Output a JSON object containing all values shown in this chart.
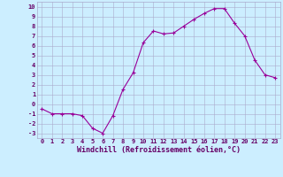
{
  "x": [
    0,
    1,
    2,
    3,
    4,
    5,
    6,
    7,
    8,
    9,
    10,
    11,
    12,
    13,
    14,
    15,
    16,
    17,
    18,
    19,
    20,
    21,
    22,
    23
  ],
  "y": [
    -0.5,
    -1.0,
    -1.0,
    -1.0,
    -1.2,
    -2.5,
    -3.0,
    -1.2,
    1.5,
    3.2,
    6.3,
    7.5,
    7.2,
    7.3,
    8.0,
    8.7,
    9.3,
    9.8,
    9.8,
    8.3,
    7.0,
    4.5,
    3.0,
    2.7
  ],
  "line_color": "#990099",
  "marker": "+",
  "marker_size": 3,
  "marker_lw": 0.8,
  "line_width": 0.8,
  "background_color": "#cceeff",
  "grid_color": "#aaaacc",
  "xlabel": "Windchill (Refroidissement éolien,°C)",
  "xlim": [
    -0.5,
    23.5
  ],
  "ylim": [
    -3.5,
    10.5
  ],
  "yticks": [
    -3,
    -2,
    -1,
    0,
    1,
    2,
    3,
    4,
    5,
    6,
    7,
    8,
    9,
    10
  ],
  "xticks": [
    0,
    1,
    2,
    3,
    4,
    5,
    6,
    7,
    8,
    9,
    10,
    11,
    12,
    13,
    14,
    15,
    16,
    17,
    18,
    19,
    20,
    21,
    22,
    23
  ],
  "tick_fontsize": 5.0,
  "xlabel_fontsize": 6.0,
  "tick_color": "#660066",
  "label_color": "#660066",
  "spine_color": "#aaaacc"
}
